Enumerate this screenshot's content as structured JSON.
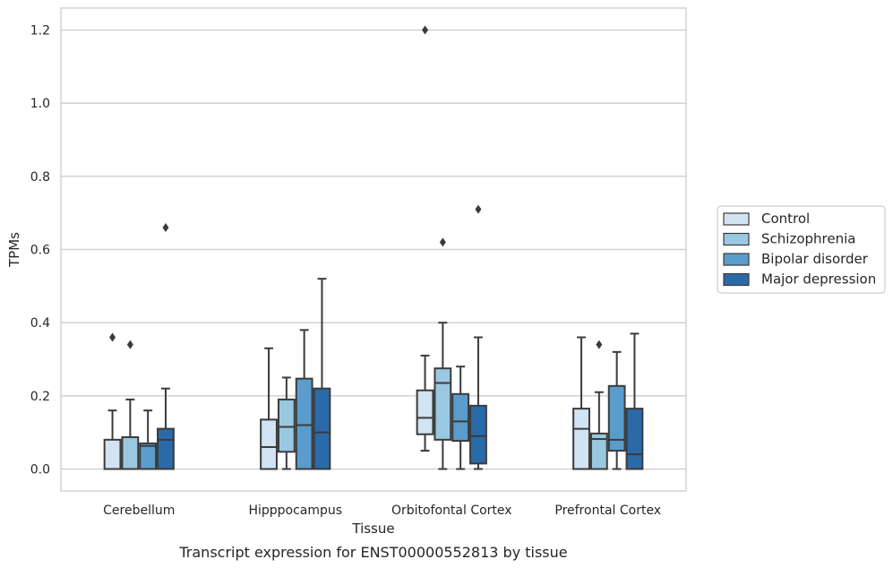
{
  "caption": "Transcript expression for ENST00000552813 by tissue",
  "chart_data": {
    "type": "box",
    "title": "",
    "xlabel": "Tissue",
    "ylabel": "TPMs",
    "ylim": [
      -0.06,
      1.26
    ],
    "yticks": [
      "0.0",
      "0.2",
      "0.4",
      "0.6",
      "0.8",
      "1.0",
      "1.2"
    ],
    "grid": "horizontal",
    "legend_position": "right",
    "categories": [
      "Cerebellum",
      "Hipppocampus",
      "Orbitofontal Cortex",
      "Prefrontal Cortex"
    ],
    "series": [
      {
        "name": "Control",
        "color": "#d2e3f3",
        "boxes": [
          {
            "q1": 0.0,
            "median": 0.0,
            "q3": 0.08,
            "whislo": 0.0,
            "whishi": 0.16,
            "fliers": [
              0.36
            ]
          },
          {
            "q1": 0.0,
            "median": 0.06,
            "q3": 0.135,
            "whislo": 0.0,
            "whishi": 0.33,
            "fliers": []
          },
          {
            "q1": 0.095,
            "median": 0.14,
            "q3": 0.215,
            "whislo": 0.05,
            "whishi": 0.31,
            "fliers": [
              1.2
            ]
          },
          {
            "q1": 0.0,
            "median": 0.11,
            "q3": 0.165,
            "whislo": 0.0,
            "whishi": 0.36,
            "fliers": []
          }
        ]
      },
      {
        "name": "Schizophrenia",
        "color": "#9ac8e0",
        "boxes": [
          {
            "q1": 0.0,
            "median": 0.0,
            "q3": 0.087,
            "whislo": 0.0,
            "whishi": 0.19,
            "fliers": [
              0.34
            ]
          },
          {
            "q1": 0.047,
            "median": 0.115,
            "q3": 0.19,
            "whislo": 0.0,
            "whishi": 0.25,
            "fliers": []
          },
          {
            "q1": 0.08,
            "median": 0.235,
            "q3": 0.275,
            "whislo": 0.0,
            "whishi": 0.4,
            "fliers": [
              0.62
            ]
          },
          {
            "q1": 0.0,
            "median": 0.082,
            "q3": 0.097,
            "whislo": 0.0,
            "whishi": 0.21,
            "fliers": [
              0.34
            ]
          }
        ]
      },
      {
        "name": "Bipolar disorder",
        "color": "#5a9dcd",
        "boxes": [
          {
            "q1": 0.0,
            "median": 0.063,
            "q3": 0.07,
            "whislo": 0.0,
            "whishi": 0.16,
            "fliers": []
          },
          {
            "q1": 0.0,
            "median": 0.12,
            "q3": 0.247,
            "whislo": 0.0,
            "whishi": 0.38,
            "fliers": []
          },
          {
            "q1": 0.077,
            "median": 0.13,
            "q3": 0.205,
            "whislo": 0.0,
            "whishi": 0.28,
            "fliers": []
          },
          {
            "q1": 0.05,
            "median": 0.08,
            "q3": 0.227,
            "whislo": 0.0,
            "whishi": 0.32,
            "fliers": []
          }
        ]
      },
      {
        "name": "Major depression",
        "color": "#2b6aa8",
        "boxes": [
          {
            "q1": 0.0,
            "median": 0.08,
            "q3": 0.11,
            "whislo": 0.0,
            "whishi": 0.22,
            "fliers": [
              0.66
            ]
          },
          {
            "q1": 0.0,
            "median": 0.1,
            "q3": 0.22,
            "whislo": 0.0,
            "whishi": 0.52,
            "fliers": []
          },
          {
            "q1": 0.015,
            "median": 0.09,
            "q3": 0.173,
            "whislo": 0.0,
            "whishi": 0.36,
            "fliers": [
              0.71
            ]
          },
          {
            "q1": 0.0,
            "median": 0.04,
            "q3": 0.165,
            "whislo": 0.0,
            "whishi": 0.37,
            "fliers": []
          }
        ]
      }
    ]
  }
}
